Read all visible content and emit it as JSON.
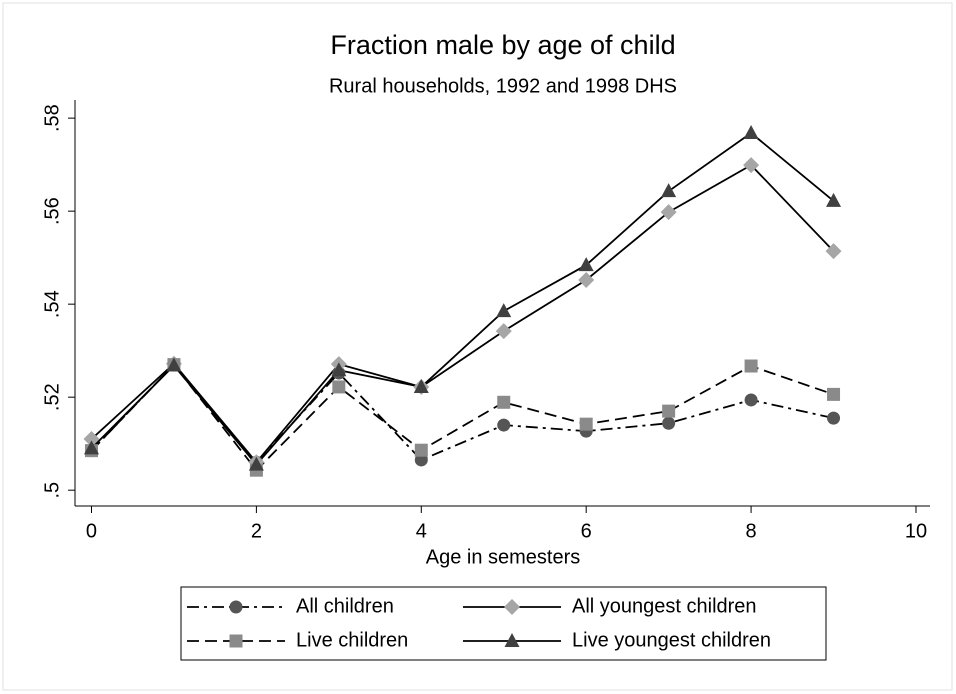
{
  "chart_data": {
    "type": "line",
    "title": "Fraction male by age of child",
    "subtitle": "Rural households, 1992 and 1998 DHS",
    "x_label": "Age in semesters",
    "x": [
      0,
      1,
      2,
      3,
      4,
      5,
      6,
      7,
      8,
      9
    ],
    "series": [
      {
        "name": "All children",
        "color": "#555555",
        "marker": "circle",
        "dash": "12 5 3 5",
        "values": [
          0.5085,
          0.527,
          0.506,
          0.5252,
          0.5065,
          0.514,
          0.5127,
          0.5144,
          0.5194,
          0.5155
        ]
      },
      {
        "name": "All youngest children",
        "color": "#a6a6a6",
        "marker": "diamond",
        "dash": "none",
        "values": [
          0.511,
          0.5272,
          0.506,
          0.5271,
          0.5222,
          0.5342,
          0.5452,
          0.5598,
          0.5699,
          0.5514
        ]
      },
      {
        "name": "Live children",
        "color": "#8a8a8a",
        "marker": "square",
        "dash": "12 6",
        "values": [
          0.5085,
          0.527,
          0.5043,
          0.5222,
          0.5086,
          0.5189,
          0.5142,
          0.517,
          0.5267,
          0.5206
        ]
      },
      {
        "name": "Live youngest children",
        "color": "#404040",
        "marker": "triangle",
        "dash": "none",
        "values": [
          0.509,
          0.5268,
          0.5055,
          0.5258,
          0.5222,
          0.5385,
          0.5484,
          0.5643,
          0.5768,
          0.5622
        ]
      }
    ],
    "xlim": [
      -0.2,
      10.17
    ],
    "xticks": [
      0,
      2,
      4,
      6,
      8,
      10
    ],
    "ylim": [
      0.4966,
      0.5839
    ],
    "yticks": [
      {
        "value": 0.5,
        "label": ".5"
      },
      {
        "value": 0.52,
        "label": ".52"
      },
      {
        "value": 0.54,
        "label": ".54"
      },
      {
        "value": 0.56,
        "label": ".56"
      },
      {
        "value": 0.58,
        "label": ".58"
      }
    ],
    "grid": false,
    "legend": "bottom"
  }
}
